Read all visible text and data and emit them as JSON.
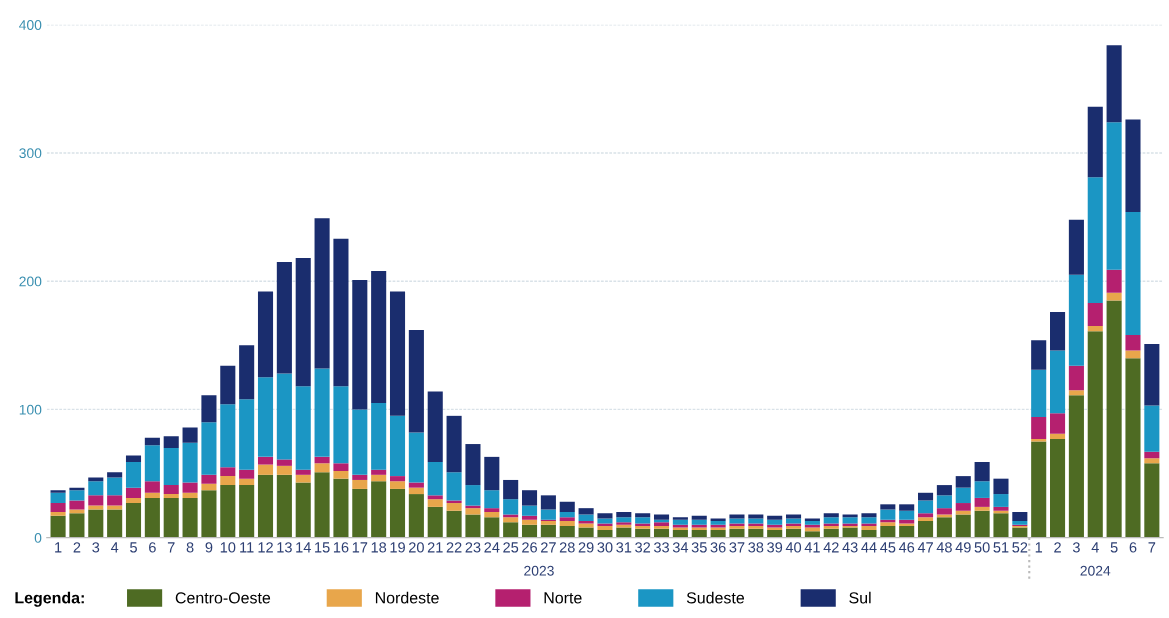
{
  "chart_data": {
    "type": "bar",
    "stacked": true,
    "categories": [
      "1",
      "2",
      "3",
      "4",
      "5",
      "6",
      "7",
      "8",
      "9",
      "10",
      "11",
      "12",
      "13",
      "14",
      "15",
      "16",
      "17",
      "18",
      "19",
      "20",
      "21",
      "22",
      "23",
      "24",
      "25",
      "26",
      "27",
      "28",
      "29",
      "30",
      "31",
      "32",
      "33",
      "34",
      "35",
      "36",
      "37",
      "38",
      "39",
      "40",
      "41",
      "42",
      "43",
      "44",
      "45",
      "46",
      "47",
      "48",
      "49",
      "50",
      "51",
      "52",
      "1",
      "2",
      "3",
      "4",
      "5",
      "6",
      "7"
    ],
    "series": [
      {
        "name": "Centro-Oeste",
        "color": "#4e6b23",
        "values": [
          17,
          19,
          22,
          22,
          27,
          31,
          31,
          31,
          37,
          41,
          41,
          49,
          49,
          43,
          51,
          46,
          38,
          44,
          38,
          34,
          24,
          21,
          18,
          16,
          12,
          10,
          10,
          9,
          8,
          6,
          8,
          7,
          7,
          6,
          6,
          6,
          7,
          7,
          6,
          7,
          5,
          7,
          8,
          6,
          9,
          9,
          13,
          16,
          18,
          21,
          19,
          8,
          75,
          77,
          111,
          161,
          185,
          140,
          58
        ]
      },
      {
        "name": "Nordeste",
        "color": "#e8a64b",
        "values": [
          3,
          3,
          3,
          3,
          4,
          4,
          3,
          4,
          5,
          7,
          5,
          8,
          7,
          6,
          7,
          6,
          7,
          5,
          6,
          5,
          6,
          6,
          5,
          4,
          4,
          4,
          3,
          4,
          3,
          3,
          2,
          2,
          2,
          2,
          2,
          2,
          2,
          2,
          2,
          2,
          3,
          2,
          1,
          3,
          3,
          2,
          3,
          2,
          3,
          3,
          2,
          1,
          2,
          4,
          4,
          4,
          6,
          6,
          4
        ]
      },
      {
        "name": "Norte",
        "color": "#b5206f",
        "values": [
          7,
          7,
          8,
          8,
          8,
          9,
          7,
          8,
          7,
          7,
          7,
          6,
          5,
          4,
          5,
          6,
          4,
          4,
          4,
          4,
          3,
          2,
          2,
          3,
          2,
          3,
          1,
          3,
          2,
          2,
          2,
          2,
          3,
          2,
          2,
          2,
          2,
          2,
          2,
          2,
          2,
          2,
          2,
          2,
          2,
          3,
          3,
          5,
          6,
          7,
          3,
          1,
          17,
          16,
          19,
          18,
          18,
          12,
          5
        ]
      },
      {
        "name": "Sudeste",
        "color": "#1b96c4",
        "values": [
          8,
          8,
          11,
          14,
          20,
          28,
          29,
          31,
          41,
          49,
          55,
          62,
          67,
          65,
          69,
          60,
          51,
          52,
          47,
          39,
          26,
          22,
          16,
          14,
          12,
          8,
          8,
          4,
          5,
          4,
          4,
          5,
          2,
          4,
          4,
          3,
          4,
          4,
          4,
          4,
          3,
          5,
          5,
          5,
          8,
          7,
          10,
          10,
          12,
          13,
          10,
          3,
          37,
          49,
          71,
          98,
          115,
          96,
          36
        ]
      },
      {
        "name": "Sul",
        "color": "#1a2d6e",
        "values": [
          2,
          2,
          3,
          4,
          5,
          6,
          9,
          12,
          21,
          30,
          42,
          67,
          87,
          100,
          117,
          115,
          101,
          103,
          97,
          80,
          55,
          44,
          32,
          26,
          15,
          12,
          11,
          8,
          5,
          4,
          4,
          3,
          4,
          2,
          3,
          2,
          3,
          3,
          3,
          3,
          2,
          3,
          2,
          3,
          4,
          5,
          6,
          8,
          9,
          15,
          12,
          7,
          23,
          30,
          43,
          55,
          60,
          72,
          48
        ]
      }
    ],
    "ylim": [
      0,
      400
    ],
    "yticks": [
      0,
      100,
      200,
      300,
      400
    ],
    "grid": "y",
    "legend": "bottom",
    "legend_title": "Legenda:",
    "annotations": [
      "2023",
      "2024"
    ]
  }
}
